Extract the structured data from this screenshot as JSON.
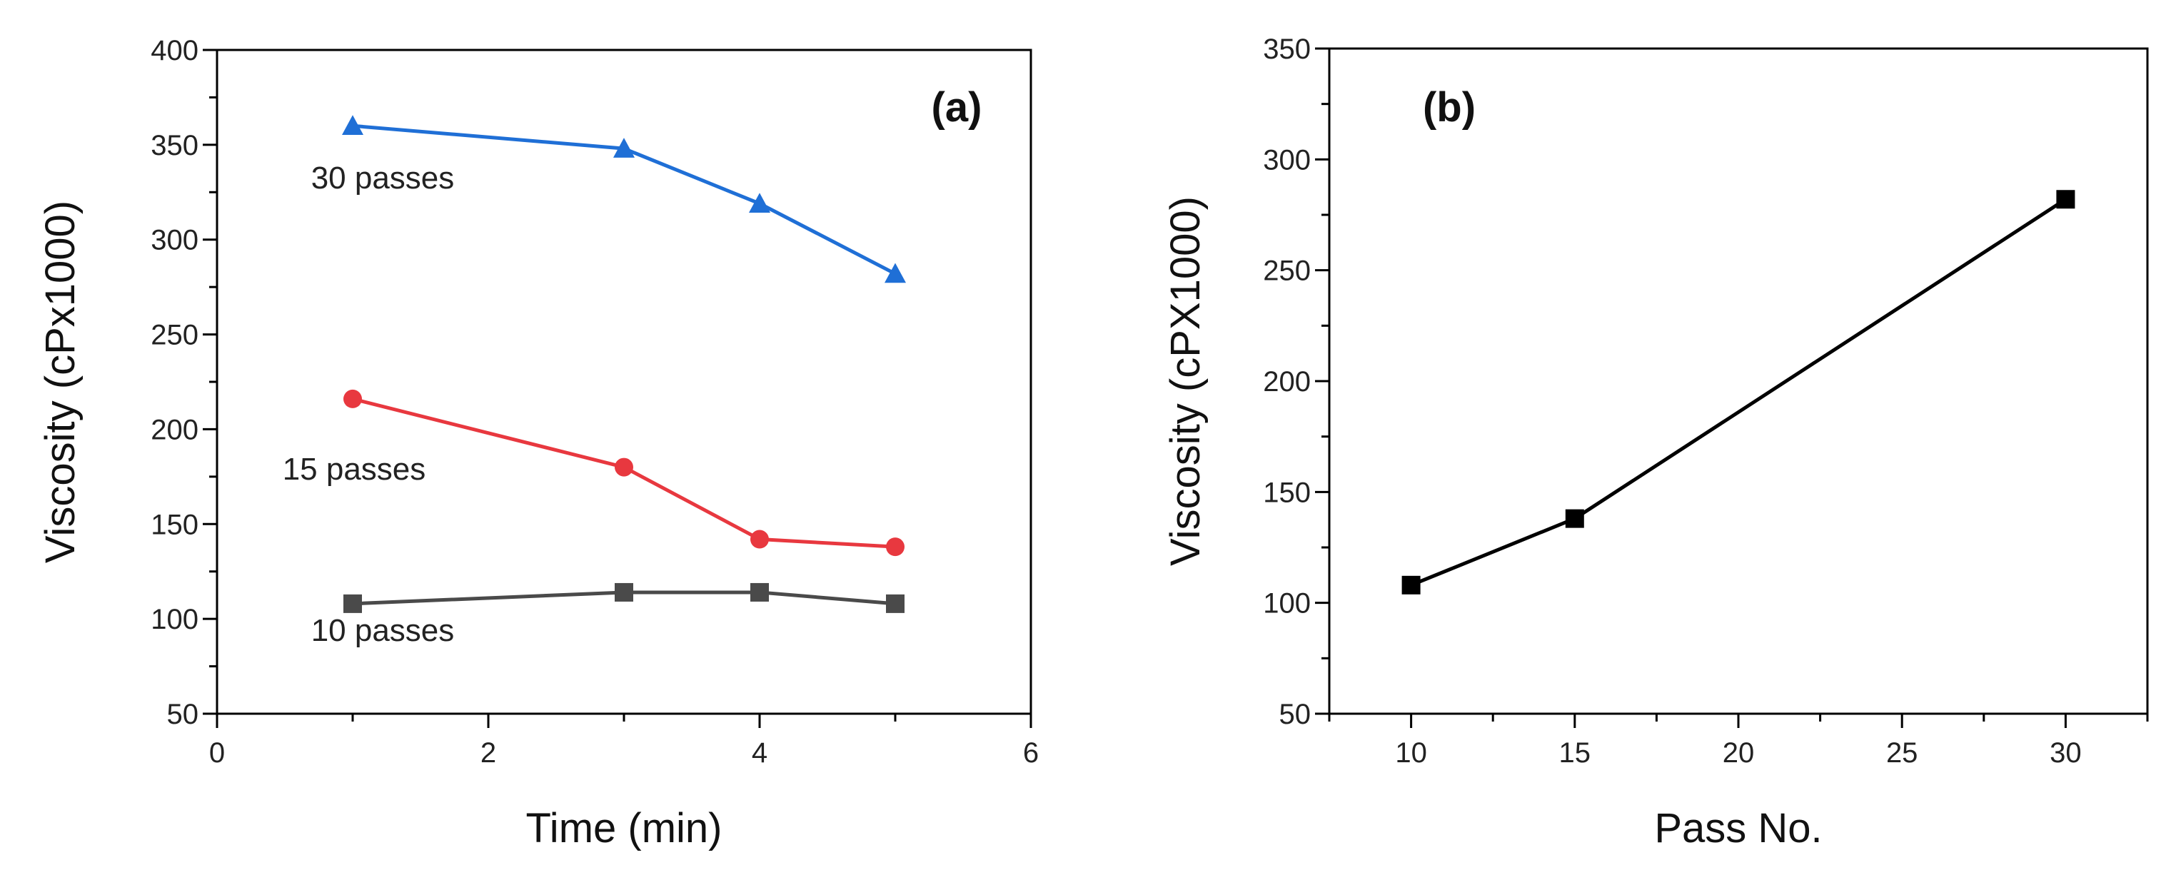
{
  "chart_data": [
    {
      "type": "line",
      "panel_label": "(a)",
      "xlabel": "Time (min)",
      "ylabel": "Viscosity (cPx1000)",
      "xlim": [
        0,
        6
      ],
      "ylim": [
        50,
        400
      ],
      "x_major_ticks": [
        0,
        2,
        4,
        6
      ],
      "y_major_ticks": [
        50,
        100,
        150,
        200,
        250,
        300,
        350,
        400
      ],
      "x_tick_labels": [
        "0",
        "2",
        "4",
        "6"
      ],
      "y_tick_labels": [
        "50",
        "100",
        "150",
        "200",
        "250",
        "300",
        "350",
        "400"
      ],
      "x": [
        1,
        3,
        4,
        5
      ],
      "series": [
        {
          "name": "30 passes",
          "label": "30 passes",
          "marker": "triangle",
          "color": "#1f6fd6",
          "values": [
            360,
            348,
            319,
            282
          ]
        },
        {
          "name": "15 passes",
          "label": "15 passes",
          "marker": "circle",
          "color": "#e8383f",
          "values": [
            216,
            180,
            142,
            138
          ]
        },
        {
          "name": "10 passes",
          "label": "10 passes",
          "marker": "square",
          "color": "#4a4a4a",
          "values": [
            108,
            114,
            114,
            108
          ]
        }
      ],
      "legend": "inline labels near each series"
    },
    {
      "type": "line",
      "panel_label": "(b)",
      "xlabel": "Pass No.",
      "ylabel": "Viscosity (cPX1000)",
      "xlim": [
        7.5,
        32.5
      ],
      "ylim": [
        50,
        350
      ],
      "x_major_ticks": [
        10,
        15,
        20,
        25,
        30
      ],
      "y_major_ticks": [
        50,
        100,
        150,
        200,
        250,
        300,
        350
      ],
      "x_tick_labels": [
        "10",
        "15",
        "20",
        "25",
        "30"
      ],
      "y_tick_labels": [
        "50",
        "100",
        "150",
        "200",
        "250",
        "300",
        "350"
      ],
      "series": [
        {
          "name": "Viscosity",
          "marker": "square",
          "color": "#000000",
          "x": [
            10,
            15,
            30
          ],
          "values": [
            108,
            138,
            282
          ]
        }
      ]
    }
  ]
}
